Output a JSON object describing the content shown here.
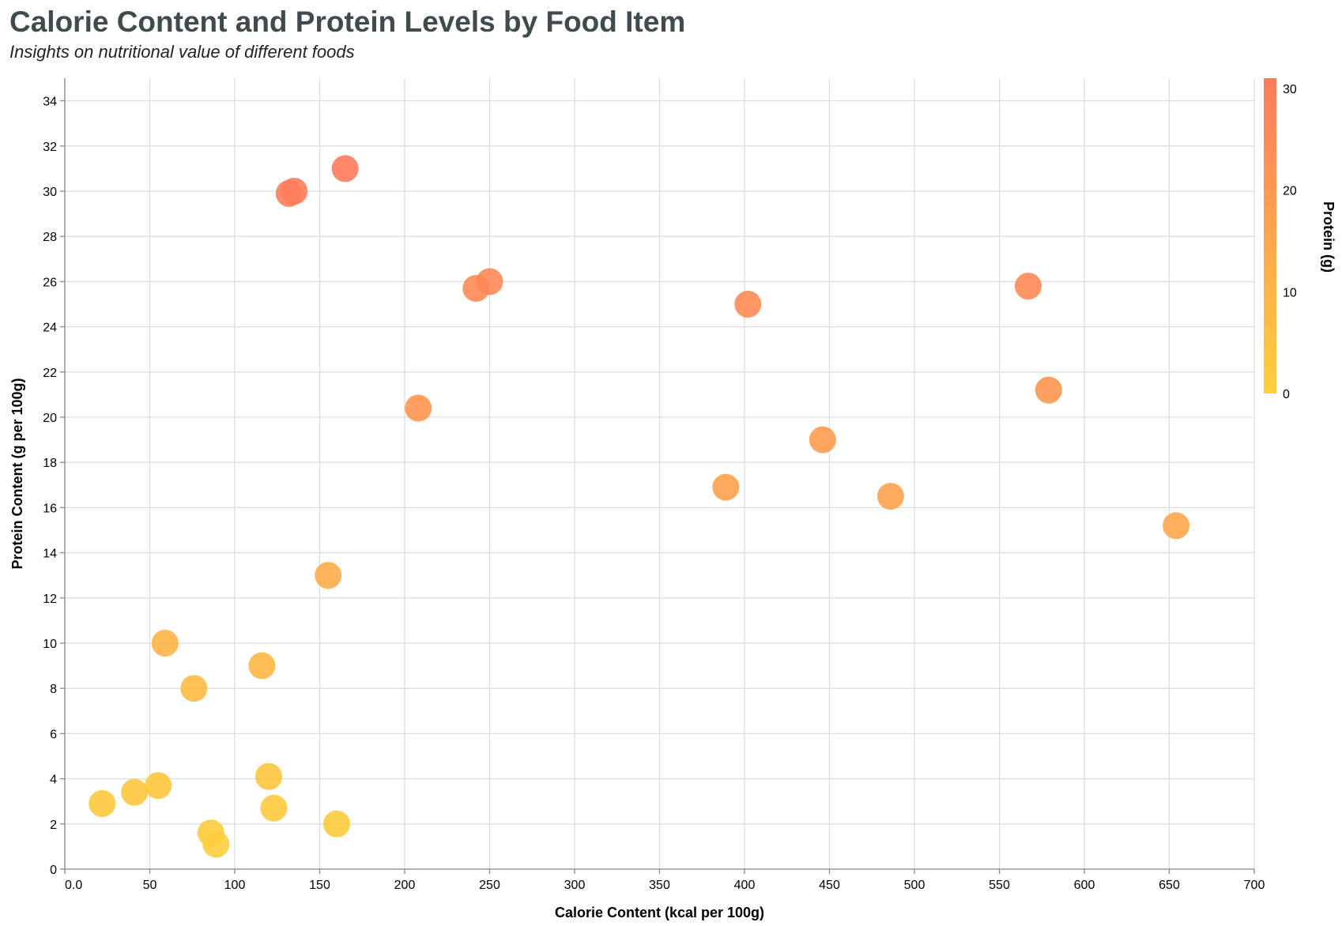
{
  "chart_data": {
    "type": "scatter",
    "title": "Calorie Content and Protein Levels by Food Item",
    "subtitle": "Insights on nutritional value of different foods",
    "xlabel": "Calorie Content (kcal per 100g)",
    "ylabel": "Protein Content (g per 100g)",
    "xlim": [
      0,
      700
    ],
    "ylim": [
      0,
      35
    ],
    "x_ticks": [
      0,
      50,
      100,
      150,
      200,
      250,
      300,
      350,
      400,
      450,
      500,
      550,
      600,
      650,
      700
    ],
    "x_tick_labels": [
      "0.0",
      "50",
      "100",
      "150",
      "200",
      "250",
      "300",
      "350",
      "400",
      "450",
      "500",
      "550",
      "600",
      "650",
      "700"
    ],
    "y_ticks": [
      0,
      2,
      4,
      6,
      8,
      10,
      12,
      14,
      16,
      18,
      20,
      22,
      24,
      26,
      28,
      30,
      32,
      34
    ],
    "y_tick_labels": [
      "0",
      "2",
      "4",
      "6",
      "8",
      "10",
      "12",
      "14",
      "16",
      "18",
      "20",
      "22",
      "24",
      "26",
      "28",
      "30",
      "32",
      "34"
    ],
    "grid": true,
    "legend": {
      "title": "Protein (g)",
      "type": "gradient",
      "placement": "right",
      "domain": [
        0,
        31
      ],
      "ticks": [
        0,
        10,
        20,
        30
      ],
      "tick_labels": [
        "0",
        "10",
        "20",
        "30"
      ],
      "color_low": "#fdd03a",
      "color_high": "#ff7a5c"
    },
    "points": [
      {
        "x": 165,
        "y": 31.0
      },
      {
        "x": 132,
        "y": 29.9
      },
      {
        "x": 135,
        "y": 30.0
      },
      {
        "x": 242,
        "y": 25.7
      },
      {
        "x": 250,
        "y": 26.0
      },
      {
        "x": 402,
        "y": 25.0
      },
      {
        "x": 567,
        "y": 25.8
      },
      {
        "x": 579,
        "y": 21.2
      },
      {
        "x": 208,
        "y": 20.4
      },
      {
        "x": 446,
        "y": 19.0
      },
      {
        "x": 389,
        "y": 16.9
      },
      {
        "x": 486,
        "y": 16.5
      },
      {
        "x": 654,
        "y": 15.2
      },
      {
        "x": 155,
        "y": 13.0
      },
      {
        "x": 59,
        "y": 10.0
      },
      {
        "x": 116,
        "y": 9.0
      },
      {
        "x": 76,
        "y": 8.0
      },
      {
        "x": 120,
        "y": 4.1
      },
      {
        "x": 55,
        "y": 3.7
      },
      {
        "x": 41,
        "y": 3.4
      },
      {
        "x": 22,
        "y": 2.9
      },
      {
        "x": 123,
        "y": 2.7
      },
      {
        "x": 160,
        "y": 2.0
      },
      {
        "x": 86,
        "y": 1.6
      },
      {
        "x": 89,
        "y": 1.1
      }
    ]
  }
}
